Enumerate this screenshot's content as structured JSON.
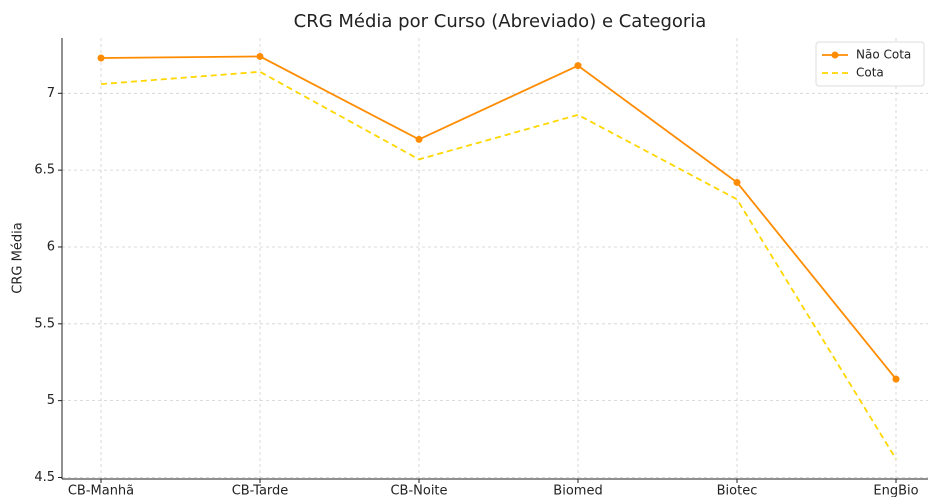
{
  "chart_data": {
    "type": "line",
    "title": "CRG Média por Curso (Abreviado) e Categoria",
    "y_label": "CRG Média",
    "categories": [
      "CB-Manhã",
      "CB-Tarde",
      "CB-Noite",
      "Biomed",
      "Biotec",
      "EngBio"
    ],
    "series": [
      {
        "name": "Não Cota",
        "color": "#ff8c00",
        "style": "solid",
        "marker": true,
        "values": [
          7.23,
          7.24,
          6.7,
          7.18,
          6.42,
          5.14
        ]
      },
      {
        "name": "Cota",
        "color": "#ffd700",
        "style": "dashed",
        "marker": false,
        "values": [
          7.06,
          7.14,
          6.57,
          6.86,
          6.31,
          4.62
        ]
      }
    ],
    "ylim": [
      4.49,
      7.36
    ],
    "yticks": [
      4.5,
      5.0,
      5.5,
      6.0,
      6.5,
      7.0
    ],
    "grid": true,
    "legend": "upper right"
  }
}
